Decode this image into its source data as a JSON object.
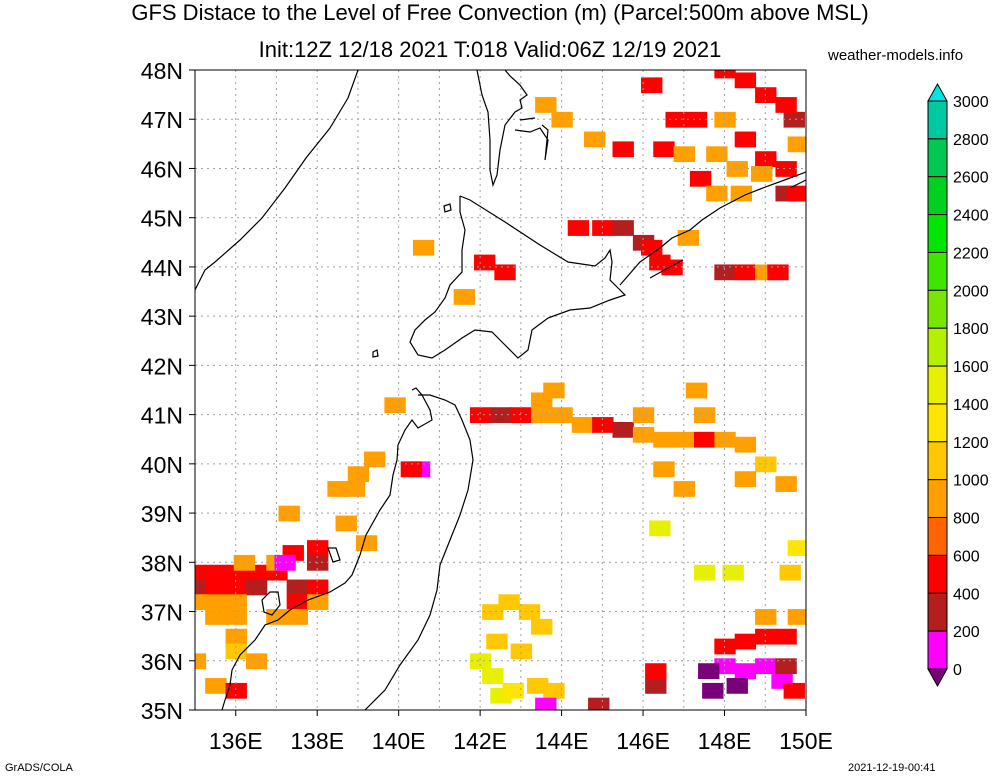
{
  "title_line1": "GFS Distace to the Level of Free Convection (m) (Parcel:500m above MSL)",
  "title_line2": "Init:12Z 12/18 2021 T:018 Valid:06Z 12/19 2021",
  "credit": "weather-models.info",
  "footer_left": "GrADS/COLA",
  "footer_right": "2021-12-19-00:41",
  "lat_labels": [
    "48N",
    "47N",
    "46N",
    "45N",
    "44N",
    "43N",
    "42N",
    "41N",
    "40N",
    "39N",
    "38N",
    "37N",
    "36N",
    "35N"
  ],
  "lon_labels": [
    "136E",
    "138E",
    "140E",
    "142E",
    "144E",
    "146E",
    "148E",
    "150E"
  ],
  "colorbar": {
    "ticks": [
      "3000",
      "2800",
      "2600",
      "2400",
      "2200",
      "2000",
      "1800",
      "1600",
      "1400",
      "1200",
      "1000",
      "800",
      "600",
      "400",
      "200",
      "0"
    ],
    "colors": [
      "#00e6e6",
      "#00c8a0",
      "#00c850",
      "#00d020",
      "#00e600",
      "#40e600",
      "#78e600",
      "#b4f000",
      "#e6f000",
      "#ffe600",
      "#ffc800",
      "#ffa000",
      "#ff6400",
      "#ff0000",
      "#b41e1e",
      "#ff00ff",
      "#780078"
    ]
  },
  "chart_data": {
    "type": "heatmap",
    "quantity": "Distance to the Level of Free Convection (m)",
    "xlim": [
      135,
      150
    ],
    "ylim": [
      35,
      48
    ],
    "value_classes_m": [
      0,
      200,
      400,
      600,
      800,
      1000,
      1200,
      1400,
      1600,
      1800,
      2000,
      2200,
      2400,
      2600,
      2800,
      3000
    ],
    "cells": [
      [
        135.0,
        37.8,
        600
      ],
      [
        135.5,
        37.8,
        600
      ],
      [
        136.0,
        37.8,
        600
      ],
      [
        136.5,
        37.8,
        600
      ],
      [
        137.0,
        37.8,
        600
      ],
      [
        135.0,
        37.5,
        400
      ],
      [
        135.5,
        37.5,
        600
      ],
      [
        136.0,
        37.5,
        600
      ],
      [
        136.5,
        37.5,
        400
      ],
      [
        137.5,
        37.5,
        400
      ],
      [
        138.0,
        37.5,
        600
      ],
      [
        135.0,
        37.2,
        1000
      ],
      [
        135.5,
        37.2,
        1000
      ],
      [
        136.0,
        37.2,
        1000
      ],
      [
        137.5,
        37.2,
        600
      ],
      [
        138.0,
        37.2,
        1000
      ],
      [
        135.5,
        36.9,
        1000
      ],
      [
        136.0,
        36.9,
        1000
      ],
      [
        137.0,
        36.9,
        1000
      ],
      [
        137.5,
        36.9,
        1000
      ],
      [
        136.0,
        36.5,
        1000
      ],
      [
        136.0,
        36.2,
        1200
      ],
      [
        135.0,
        36.0,
        1000
      ],
      [
        136.5,
        36.0,
        1000
      ],
      [
        135.5,
        35.5,
        1000
      ],
      [
        136.0,
        35.4,
        600
      ],
      [
        137.4,
        38.2,
        600
      ],
      [
        138.0,
        38.3,
        600
      ],
      [
        137.0,
        38.0,
        1000
      ],
      [
        137.2,
        38.0,
        200
      ],
      [
        136.2,
        38.0,
        1000
      ],
      [
        138.0,
        38.0,
        400
      ],
      [
        137.3,
        39.0,
        1000
      ],
      [
        138.5,
        39.5,
        1000
      ],
      [
        138.9,
        39.5,
        1000
      ],
      [
        139.0,
        39.8,
        1000
      ],
      [
        139.4,
        40.1,
        1000
      ],
      [
        138.7,
        38.8,
        1000
      ],
      [
        139.2,
        38.4,
        1000
      ],
      [
        140.5,
        39.9,
        200
      ],
      [
        140.3,
        39.9,
        600
      ],
      [
        139.9,
        41.2,
        1000
      ],
      [
        142.0,
        41.0,
        600
      ],
      [
        142.5,
        41.0,
        400
      ],
      [
        143.0,
        41.0,
        600
      ],
      [
        143.5,
        41.0,
        1000
      ],
      [
        144.0,
        41.0,
        1000
      ],
      [
        144.5,
        40.8,
        1000
      ],
      [
        145.0,
        40.8,
        600
      ],
      [
        145.5,
        40.7,
        400
      ],
      [
        146.0,
        40.6,
        1000
      ],
      [
        146.5,
        40.5,
        1000
      ],
      [
        147.0,
        40.5,
        1000
      ],
      [
        147.5,
        40.5,
        600
      ],
      [
        148.0,
        40.5,
        1000
      ],
      [
        148.5,
        40.4,
        1000
      ],
      [
        149.0,
        40.0,
        1200
      ],
      [
        149.5,
        39.6,
        1000
      ],
      [
        143.8,
        41.5,
        1000
      ],
      [
        146.0,
        41.0,
        1000
      ],
      [
        147.5,
        41.0,
        1000
      ],
      [
        147.3,
        41.5,
        1000
      ],
      [
        143.5,
        41.3,
        1000
      ],
      [
        146.5,
        39.9,
        1000
      ],
      [
        147.0,
        39.5,
        1000
      ],
      [
        148.5,
        39.7,
        1000
      ],
      [
        146.4,
        38.7,
        1600
      ],
      [
        147.5,
        37.8,
        1600
      ],
      [
        148.2,
        37.8,
        1600
      ],
      [
        149.8,
        38.3,
        1400
      ],
      [
        149.6,
        37.8,
        1200
      ],
      [
        142.3,
        37.0,
        1200
      ],
      [
        142.7,
        37.2,
        1200
      ],
      [
        143.2,
        37.0,
        1200
      ],
      [
        143.5,
        36.7,
        1200
      ],
      [
        142.4,
        36.4,
        1200
      ],
      [
        143.0,
        36.2,
        1200
      ],
      [
        142.0,
        36.0,
        1600
      ],
      [
        142.3,
        35.7,
        1600
      ],
      [
        142.5,
        35.3,
        1600
      ],
      [
        142.8,
        35.4,
        1400
      ],
      [
        143.4,
        35.5,
        1200
      ],
      [
        143.8,
        35.4,
        1200
      ],
      [
        148.0,
        36.3,
        600
      ],
      [
        148.5,
        36.4,
        600
      ],
      [
        149.0,
        36.5,
        600
      ],
      [
        149.5,
        36.5,
        600
      ],
      [
        149.8,
        36.9,
        1000
      ],
      [
        149.0,
        36.9,
        1000
      ],
      [
        148.0,
        35.9,
        200
      ],
      [
        148.5,
        35.8,
        200
      ],
      [
        149.0,
        35.9,
        200
      ],
      [
        149.4,
        35.6,
        200
      ],
      [
        147.6,
        35.8,
        0
      ],
      [
        147.7,
        35.4,
        0
      ],
      [
        148.3,
        35.5,
        0
      ],
      [
        149.5,
        35.9,
        400
      ],
      [
        149.7,
        35.4,
        600
      ],
      [
        146.3,
        35.5,
        400
      ],
      [
        146.3,
        35.8,
        600
      ],
      [
        143.6,
        35.1,
        200
      ],
      [
        144.9,
        35.1,
        400
      ],
      [
        144.4,
        44.8,
        600
      ],
      [
        145.0,
        44.8,
        600
      ],
      [
        145.5,
        44.8,
        400
      ],
      [
        146.0,
        44.5,
        400
      ],
      [
        146.2,
        44.4,
        600
      ],
      [
        147.1,
        44.6,
        1000
      ],
      [
        146.4,
        44.1,
        600
      ],
      [
        146.7,
        44.0,
        600
      ],
      [
        148.0,
        43.9,
        400
      ],
      [
        148.5,
        43.9,
        600
      ],
      [
        149.0,
        43.9,
        1000
      ],
      [
        149.3,
        43.9,
        600
      ],
      [
        140.6,
        44.4,
        1000
      ],
      [
        142.1,
        44.1,
        600
      ],
      [
        142.6,
        43.9,
        600
      ],
      [
        141.6,
        43.4,
        1000
      ],
      [
        146.8,
        47.0,
        600
      ],
      [
        147.3,
        47.0,
        600
      ],
      [
        148.0,
        47.0,
        1000
      ],
      [
        148.5,
        46.6,
        600
      ],
      [
        149.0,
        46.2,
        600
      ],
      [
        149.5,
        46.0,
        600
      ],
      [
        146.5,
        46.4,
        600
      ],
      [
        147.0,
        46.3,
        1000
      ],
      [
        147.8,
        46.3,
        1000
      ],
      [
        148.3,
        46.0,
        1000
      ],
      [
        148.9,
        45.9,
        1000
      ],
      [
        149.5,
        45.5,
        400
      ],
      [
        149.8,
        45.5,
        600
      ],
      [
        147.4,
        45.8,
        600
      ],
      [
        147.8,
        45.5,
        1000
      ],
      [
        148.4,
        45.5,
        1000
      ],
      [
        149.8,
        46.5,
        1000
      ],
      [
        149.7,
        47.0,
        400
      ],
      [
        148.0,
        48.0,
        600
      ],
      [
        148.5,
        47.8,
        600
      ],
      [
        149.0,
        47.5,
        600
      ],
      [
        149.5,
        47.3,
        600
      ],
      [
        146.2,
        47.7,
        600
      ],
      [
        145.5,
        46.4,
        600
      ],
      [
        144.8,
        46.6,
        1000
      ],
      [
        144.0,
        47.0,
        1000
      ],
      [
        143.6,
        47.3,
        1000
      ]
    ]
  }
}
